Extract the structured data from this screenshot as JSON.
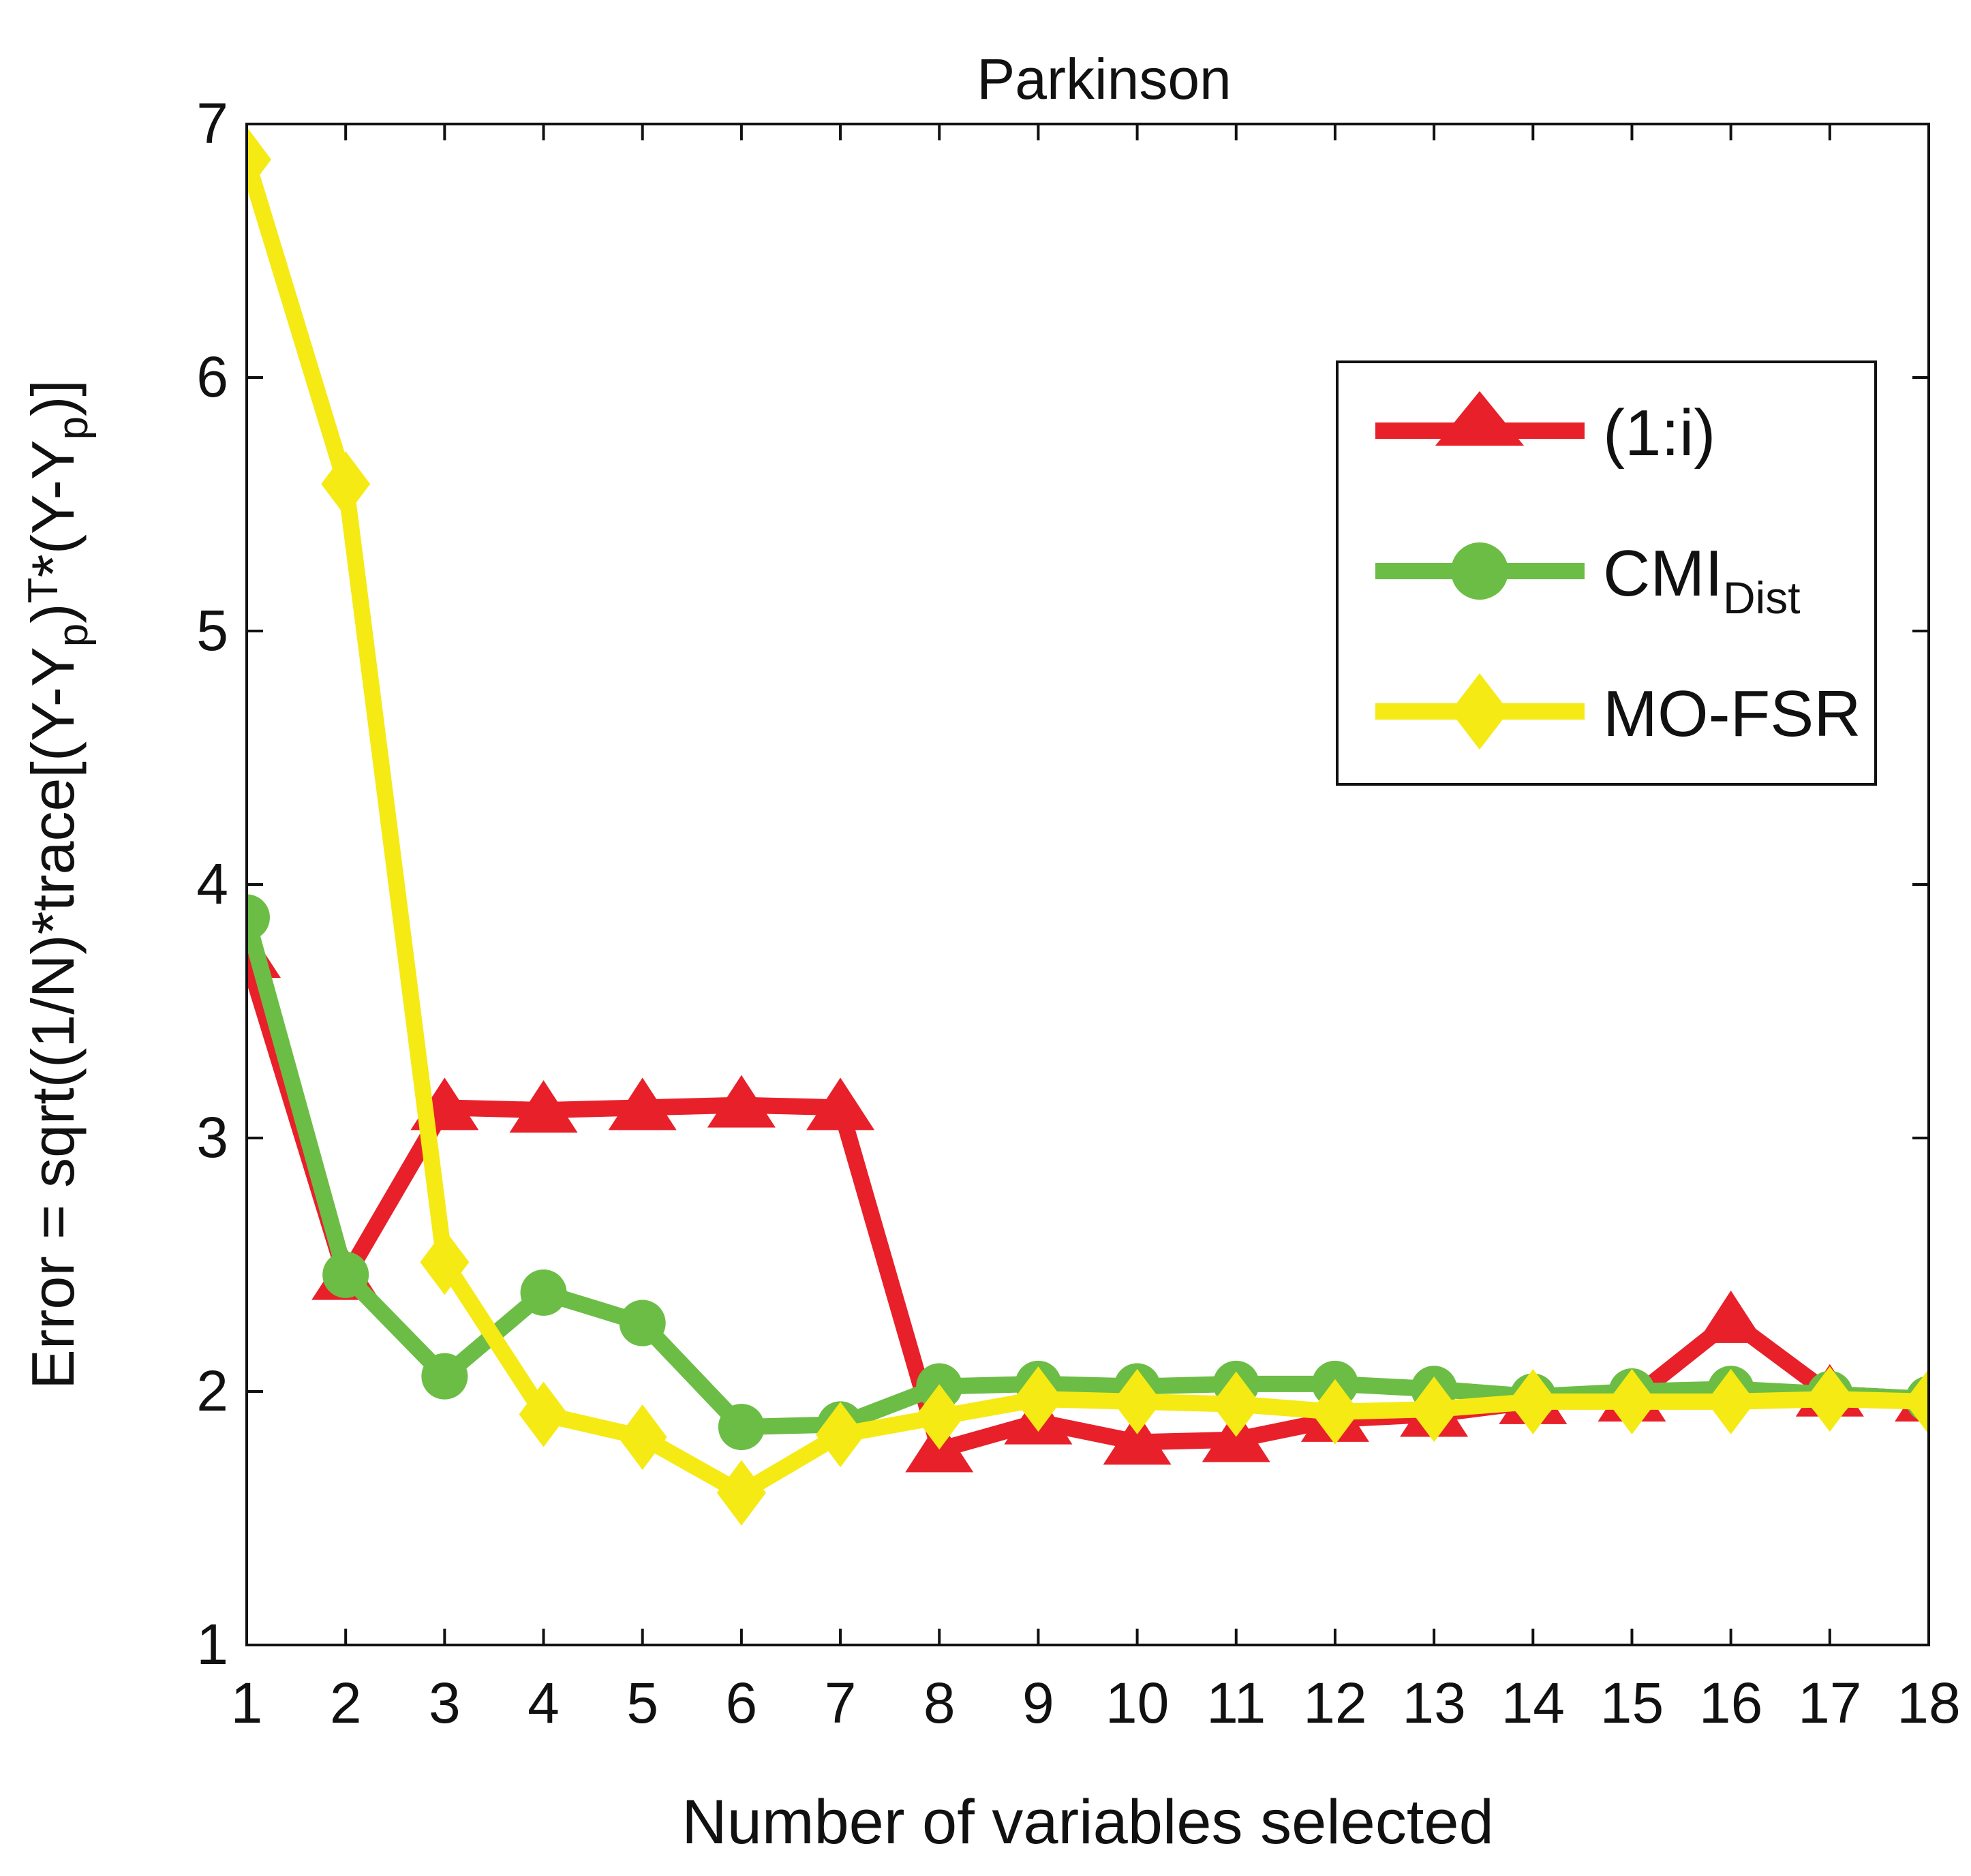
{
  "chart_data": {
    "type": "line",
    "title": "Parkinson",
    "xlabel": "Number of variables selected",
    "ylabel": {
      "main": "Error = sqrt((1/N)*trace[(Y-Y",
      "sub1": "p",
      "mid1": ")",
      "sup": "T",
      "mid2": "*(Y-Y",
      "sub2": "p",
      "tail": ")]"
    },
    "x": [
      1,
      2,
      3,
      4,
      5,
      6,
      7,
      8,
      9,
      10,
      11,
      12,
      13,
      14,
      15,
      16,
      17,
      18
    ],
    "xlim": [
      1,
      18
    ],
    "ylim": [
      1,
      7
    ],
    "xticks": [
      "1",
      "2",
      "3",
      "4",
      "5",
      "6",
      "7",
      "8",
      "9",
      "10",
      "11",
      "12",
      "13",
      "14",
      "15",
      "16",
      "17",
      "18"
    ],
    "yticks": [
      "1",
      "2",
      "3",
      "4",
      "5",
      "6",
      "7"
    ],
    "series": [
      {
        "name": "(1:i)",
        "label_main": "(1:i)",
        "label_sub": "",
        "color": "#e8202a",
        "marker": "triangle",
        "values": [
          3.72,
          2.45,
          3.12,
          3.11,
          3.12,
          3.13,
          3.12,
          1.77,
          1.88,
          1.8,
          1.81,
          1.89,
          1.91,
          1.96,
          1.97,
          2.28,
          1.99,
          1.97
        ]
      },
      {
        "name": "CMI_Dist",
        "label_main": "CMI",
        "label_sub": "Dist",
        "color": "#6cbd45",
        "marker": "circle",
        "values": [
          3.87,
          2.46,
          2.06,
          2.39,
          2.27,
          1.86,
          1.87,
          2.02,
          2.03,
          2.02,
          2.03,
          2.03,
          2.01,
          1.98,
          2.0,
          2.01,
          1.99,
          1.97
        ]
      },
      {
        "name": "MO-FSR",
        "label_main": "MO-FSR",
        "label_sub": "",
        "color": "#f5ea14",
        "marker": "diamond",
        "values": [
          6.86,
          5.58,
          2.51,
          1.91,
          1.82,
          1.6,
          1.83,
          1.9,
          1.97,
          1.96,
          1.95,
          1.92,
          1.93,
          1.96,
          1.96,
          1.96,
          1.97,
          1.96
        ]
      }
    ],
    "legend_position": "top-right",
    "grid": false
  }
}
